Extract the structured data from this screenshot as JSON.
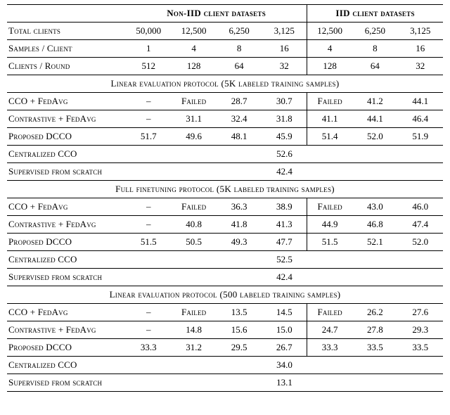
{
  "headerGroups": {
    "nonIID": "Non-IID client datasets",
    "iid": "IID client datasets"
  },
  "metaRows": [
    {
      "label": "Total clients",
      "nonIID": [
        "50,000",
        "12,500",
        "6,250",
        "3,125"
      ],
      "iid": [
        "12,500",
        "6,250",
        "3,125"
      ]
    },
    {
      "label": "Samples / Client",
      "nonIID": [
        "1",
        "4",
        "8",
        "16"
      ],
      "iid": [
        "4",
        "8",
        "16"
      ]
    },
    {
      "label": "Clients / Round",
      "nonIID": [
        "512",
        "128",
        "64",
        "32"
      ],
      "iid": [
        "128",
        "64",
        "32"
      ]
    }
  ],
  "sections": [
    {
      "title": "Linear evaluation protocol (5K labeled training samples)",
      "rows": [
        {
          "label": "CCO + FedAvg",
          "nonIID": [
            "–",
            "Failed",
            "28.7",
            "30.7"
          ],
          "iid": [
            "Failed",
            "41.2",
            "44.1"
          ]
        },
        {
          "label": "Contrastive + FedAvg",
          "nonIID": [
            "–",
            "31.1",
            "32.4",
            "31.8"
          ],
          "iid": [
            "41.1",
            "44.1",
            "46.4"
          ]
        },
        {
          "label": "Proposed DCCO",
          "nonIID": [
            "51.7",
            "49.6",
            "48.1",
            "45.9"
          ],
          "iid": [
            "51.4",
            "52.0",
            "51.9"
          ]
        }
      ],
      "centralized": {
        "label": "Centralized CCO",
        "value": "52.6"
      },
      "supervised": {
        "label": "Supervised from scratch",
        "value": "42.4"
      }
    },
    {
      "title": "Full finetuning protocol (5K labeled training samples)",
      "rows": [
        {
          "label": "CCO + FedAvg",
          "nonIID": [
            "–",
            "Failed",
            "36.3",
            "38.9"
          ],
          "iid": [
            "Failed",
            "43.0",
            "46.0"
          ]
        },
        {
          "label": "Contrastive + FedAvg",
          "nonIID": [
            "–",
            "40.8",
            "41.8",
            "41.3"
          ],
          "iid": [
            "44.9",
            "46.8",
            "47.4"
          ]
        },
        {
          "label": "Proposed DCCO",
          "nonIID": [
            "51.5",
            "50.5",
            "49.3",
            "47.7"
          ],
          "iid": [
            "51.5",
            "52.1",
            "52.0"
          ]
        }
      ],
      "centralized": {
        "label": "Centralized CCO",
        "value": "52.5"
      },
      "supervised": {
        "label": "Supervised from scratch",
        "value": "42.4"
      }
    },
    {
      "title": "Linear evaluation protocol (500 labeled training samples)",
      "rows": [
        {
          "label": "CCO + FedAvg",
          "nonIID": [
            "–",
            "Failed",
            "13.5",
            "14.5"
          ],
          "iid": [
            "Failed",
            "26.2",
            "27.6"
          ]
        },
        {
          "label": "Contrastive + FedAvg",
          "nonIID": [
            "–",
            "14.8",
            "15.6",
            "15.0"
          ],
          "iid": [
            "24.7",
            "27.8",
            "29.3"
          ]
        },
        {
          "label": "Proposed DCCO",
          "nonIID": [
            "33.3",
            "31.2",
            "29.5",
            "26.7"
          ],
          "iid": [
            "33.3",
            "33.5",
            "33.5"
          ]
        }
      ],
      "centralized": {
        "label": "Centralized CCO",
        "value": "34.0"
      },
      "supervised": {
        "label": "Supervised from scratch",
        "value": "13.1"
      }
    }
  ]
}
